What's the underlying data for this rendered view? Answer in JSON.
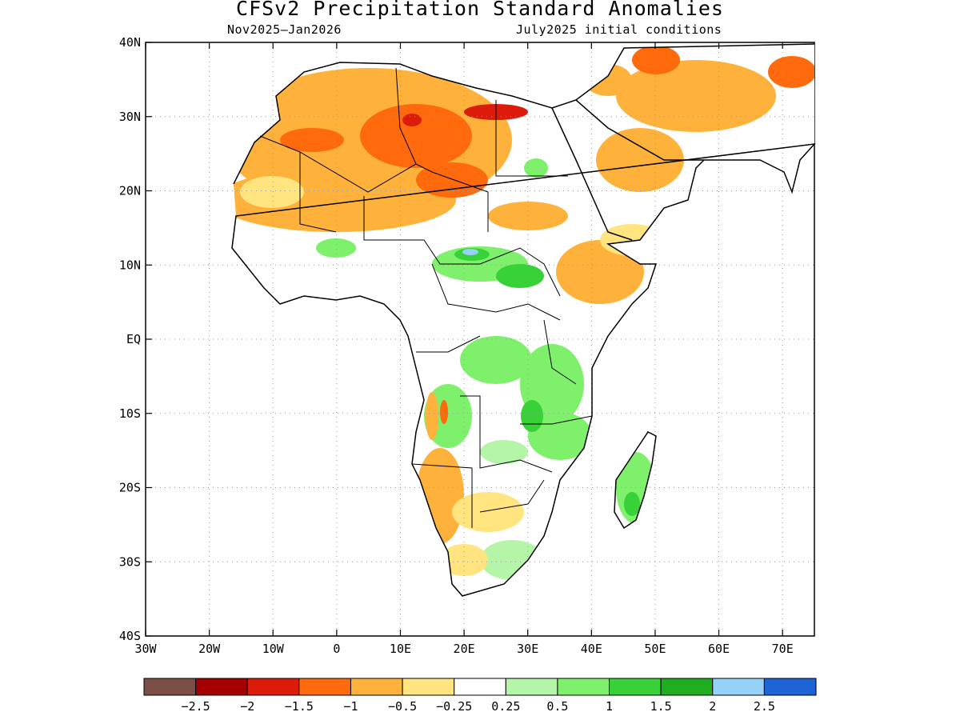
{
  "title": "CFSv2 Precipitation Standard Anomalies",
  "subtitle_left": "Nov2025–Jan2026",
  "subtitle_right": "July2025 initial conditions",
  "axes": {
    "lat_labels": [
      "40N",
      "30N",
      "20N",
      "10N",
      "EQ",
      "10S",
      "20S",
      "30S",
      "40S"
    ],
    "lon_labels": [
      "30W",
      "20W",
      "10W",
      "0",
      "10E",
      "20E",
      "30E",
      "40E",
      "50E",
      "60E",
      "70E"
    ],
    "lat_range": [
      -40,
      40
    ],
    "lon_range": [
      -30,
      75
    ]
  },
  "colorbar": {
    "colors": [
      "#7b4f45",
      "#a50000",
      "#dd1b0b",
      "#ff6a0d",
      "#ffb23b",
      "#ffe480",
      "#ffffff",
      "#b5f5a8",
      "#7ff06b",
      "#38d138",
      "#1fae21",
      "#96d2f8",
      "#1e64d6"
    ],
    "labels": [
      "−2.5",
      "−2",
      "−1.5",
      "−1",
      "−0.5",
      "−0.25",
      "0.25",
      "0.5",
      "1",
      "1.5",
      "2",
      "2.5"
    ]
  }
}
